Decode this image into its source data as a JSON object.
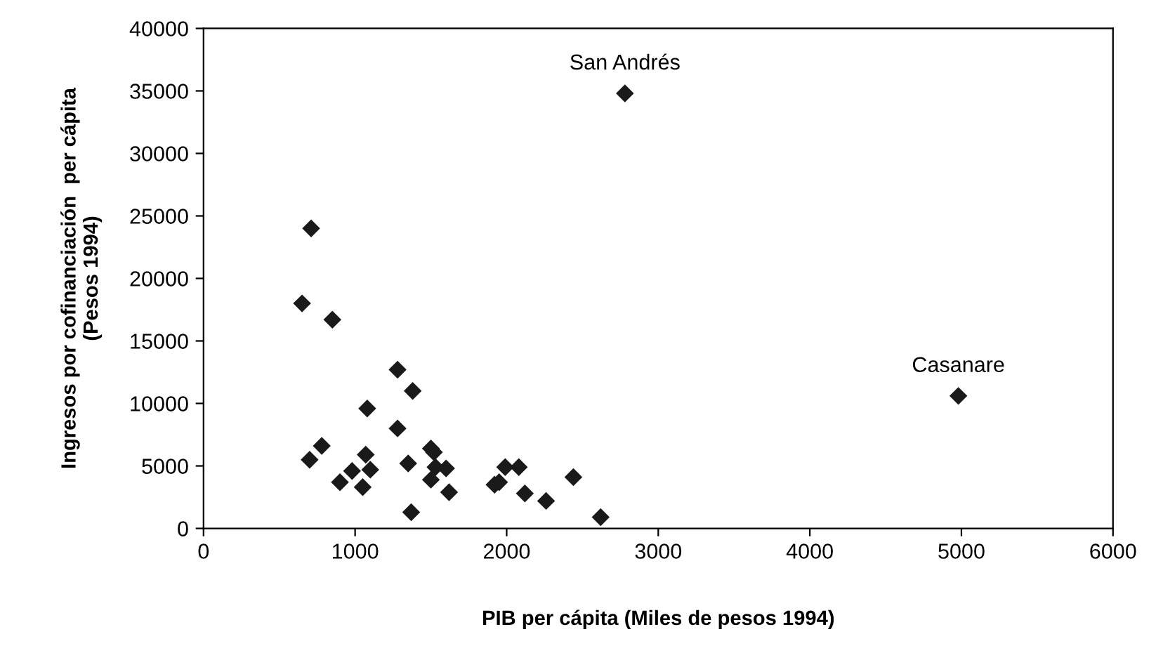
{
  "chart_data": {
    "type": "scatter",
    "xlabel": "PIB per cápita (Miles de pesos 1994)",
    "ylabel": "Ingresos por cofinanciación  per cápita\n(Pesos 1994)",
    "x": [
      710,
      650,
      850,
      1280,
      1380,
      1080,
      1280,
      1500,
      1520,
      700,
      780,
      1070,
      1100,
      980,
      900,
      1050,
      1350,
      1530,
      1600,
      1500,
      1620,
      1370,
      1990,
      2080,
      1920,
      1950,
      2120,
      2260,
      2440,
      2620,
      2780,
      4980
    ],
    "series": [
      {
        "color": "#1a1a1a",
        "values": [
          24000,
          18000,
          16700,
          12700,
          11000,
          9600,
          8000,
          6400,
          6100,
          5500,
          6600,
          5900,
          4700,
          4600,
          3700,
          3300,
          5200,
          4900,
          4800,
          3900,
          2900,
          1300,
          4900,
          4900,
          3500,
          3700,
          2800,
          2200,
          4100,
          900,
          34800,
          10600
        ]
      }
    ],
    "xlim": [
      0,
      6000
    ],
    "xticks": [
      0,
      1000,
      2000,
      3000,
      4000,
      5000,
      6000
    ],
    "ylim": [
      0,
      40000
    ],
    "yticks": [
      0,
      5000,
      10000,
      15000,
      20000,
      25000,
      30000,
      35000,
      40000
    ],
    "marker": "diamond",
    "grid": false,
    "legend": false,
    "annotations": [
      {
        "text": "San Andrés",
        "x": 2780,
        "y": 34800
      },
      {
        "text": "Casanare",
        "x": 4980,
        "y": 10600
      }
    ]
  }
}
